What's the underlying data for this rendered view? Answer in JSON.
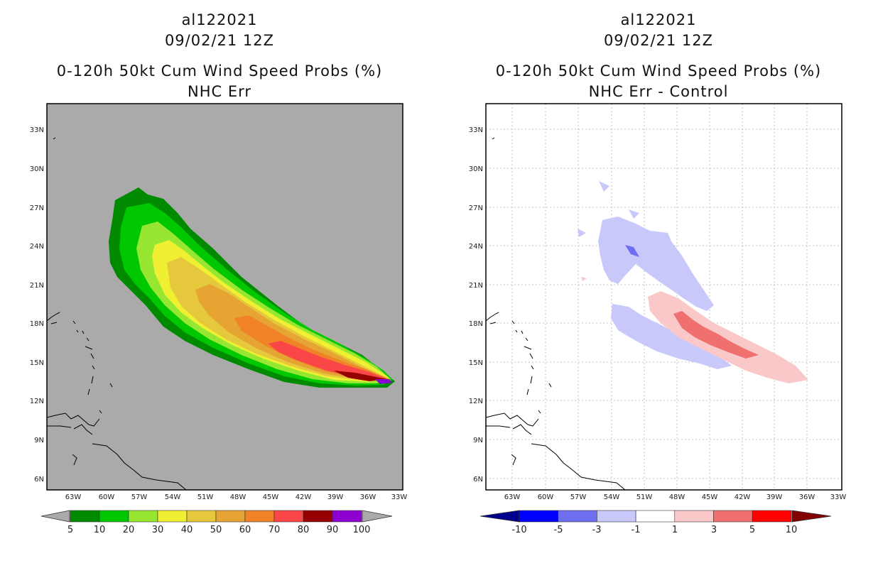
{
  "left_panel": {
    "storm_id": "al122021",
    "datetime": "09/02/21 12Z",
    "product": "0-120h 50kt Cum Wind Speed Probs (%)",
    "subtitle": "NHC Err",
    "colorbar_labels": [
      "5",
      "10",
      "20",
      "30",
      "40",
      "50",
      "60",
      "70",
      "80",
      "90",
      "100"
    ],
    "colorbar_colors": [
      "#008a00",
      "#00c800",
      "#96e632",
      "#f0f032",
      "#e6c83c",
      "#e6a532",
      "#f08228",
      "#fa4646",
      "#960000",
      "#8c00d2"
    ]
  },
  "right_panel": {
    "storm_id": "al122021",
    "datetime": "09/02/21 12Z",
    "product": "0-120h 50kt Cum Wind Speed Probs (%)",
    "subtitle": "NHC Err - Control",
    "colorbar_labels": [
      "-10",
      "-5",
      "-3",
      "-1",
      "1",
      "3",
      "5",
      "10"
    ],
    "colorbar_colors": [
      "#0000c8",
      "#0000ff",
      "#6e6ef0",
      "#c8c8fa",
      "#ffffff",
      "#fac8c8",
      "#f07070",
      "#ff0000"
    ]
  },
  "axes": {
    "lon_labels": [
      "63W",
      "60W",
      "57W",
      "54W",
      "51W",
      "48W",
      "45W",
      "42W",
      "39W",
      "36W",
      "33W"
    ],
    "lat_labels": [
      "33N",
      "30N",
      "27N",
      "24N",
      "21N",
      "18N",
      "15N",
      "12N",
      "9N",
      "6N"
    ]
  },
  "colors": {
    "background_gray": "#aaaaaa"
  }
}
